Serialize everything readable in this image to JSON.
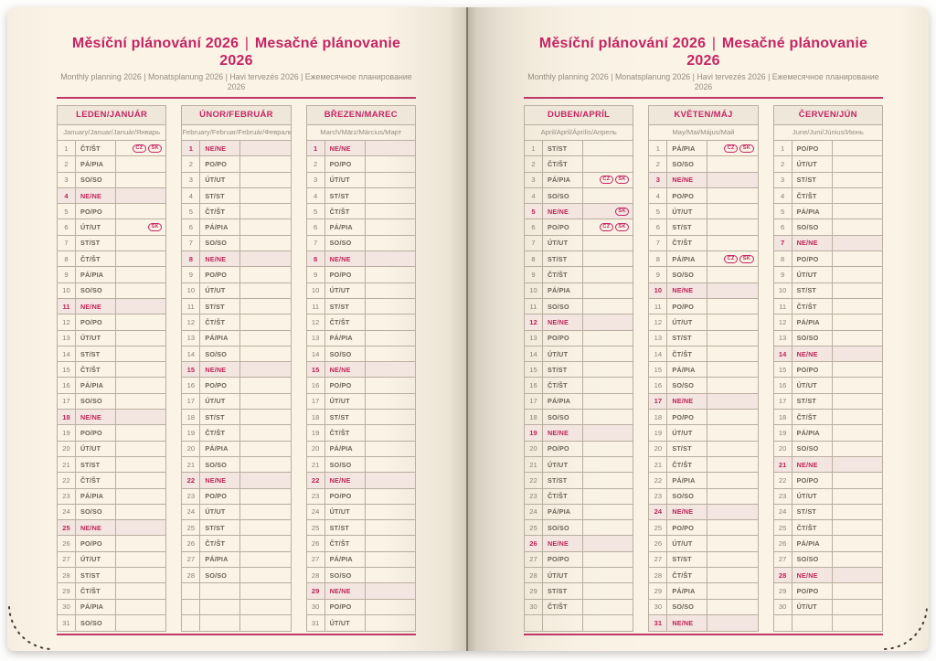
{
  "title": {
    "cs": "Měsíční plánování 2026",
    "sep": "|",
    "sk": "Mesačné plánovanie 2026",
    "subtitle": "Monthly planning 2026 | Monatsplanung 2026 | Havi tervezés 2026 | Ежемесячное планирование 2026"
  },
  "colors": {
    "accent_pink": "#c42563",
    "sunday_text": "#bf2456",
    "sunday_row_bg": "#f3e6e1",
    "table_border": "#b9ae9f",
    "page_paper": "#faf3e6"
  },
  "badge_labels": [
    "CZ",
    "SK"
  ],
  "months": [
    {
      "header": "LEDEN/JANUÁR",
      "subheader": "January/Januar/Január/Январь",
      "days": [
        {
          "n": "1",
          "w": "ČT/ŠT",
          "b": [
            "CZ",
            "SK"
          ]
        },
        {
          "n": "2",
          "w": "PÁ/PIA"
        },
        {
          "n": "3",
          "w": "SO/SO"
        },
        {
          "n": "4",
          "w": "NE/NE",
          "s": true
        },
        {
          "n": "5",
          "w": "PO/PO"
        },
        {
          "n": "6",
          "w": "ÚT/UT",
          "b": [
            "SK"
          ]
        },
        {
          "n": "7",
          "w": "ST/ST"
        },
        {
          "n": "8",
          "w": "ČT/ŠT"
        },
        {
          "n": "9",
          "w": "PÁ/PIA"
        },
        {
          "n": "10",
          "w": "SO/SO"
        },
        {
          "n": "11",
          "w": "NE/NE",
          "s": true
        },
        {
          "n": "12",
          "w": "PO/PO"
        },
        {
          "n": "13",
          "w": "ÚT/UT"
        },
        {
          "n": "14",
          "w": "ST/ST"
        },
        {
          "n": "15",
          "w": "ČT/ŠT"
        },
        {
          "n": "16",
          "w": "PÁ/PIA"
        },
        {
          "n": "17",
          "w": "SO/SO"
        },
        {
          "n": "18",
          "w": "NE/NE",
          "s": true
        },
        {
          "n": "19",
          "w": "PO/PO"
        },
        {
          "n": "20",
          "w": "ÚT/UT"
        },
        {
          "n": "21",
          "w": "ST/ST"
        },
        {
          "n": "22",
          "w": "ČT/ŠT"
        },
        {
          "n": "23",
          "w": "PÁ/PIA"
        },
        {
          "n": "24",
          "w": "SO/SO"
        },
        {
          "n": "25",
          "w": "NE/NE",
          "s": true
        },
        {
          "n": "26",
          "w": "PO/PO"
        },
        {
          "n": "27",
          "w": "ÚT/UT"
        },
        {
          "n": "28",
          "w": "ST/ST"
        },
        {
          "n": "29",
          "w": "ČT/ŠT"
        },
        {
          "n": "30",
          "w": "PÁ/PIA"
        },
        {
          "n": "31",
          "w": "SO/SO"
        }
      ]
    },
    {
      "header": "ÚNOR/FEBRUÁR",
      "subheader": "February/Februar/Február/Февраль",
      "days": [
        {
          "n": "1",
          "w": "NE/NE",
          "s": true
        },
        {
          "n": "2",
          "w": "PO/PO"
        },
        {
          "n": "3",
          "w": "ÚT/UT"
        },
        {
          "n": "4",
          "w": "ST/ST"
        },
        {
          "n": "5",
          "w": "ČT/ŠT"
        },
        {
          "n": "6",
          "w": "PÁ/PIA"
        },
        {
          "n": "7",
          "w": "SO/SO"
        },
        {
          "n": "8",
          "w": "NE/NE",
          "s": true
        },
        {
          "n": "9",
          "w": "PO/PO"
        },
        {
          "n": "10",
          "w": "ÚT/UT"
        },
        {
          "n": "11",
          "w": "ST/ST"
        },
        {
          "n": "12",
          "w": "ČT/ŠT"
        },
        {
          "n": "13",
          "w": "PÁ/PIA"
        },
        {
          "n": "14",
          "w": "SO/SO"
        },
        {
          "n": "15",
          "w": "NE/NE",
          "s": true
        },
        {
          "n": "16",
          "w": "PO/PO"
        },
        {
          "n": "17",
          "w": "ÚT/UT"
        },
        {
          "n": "18",
          "w": "ST/ST"
        },
        {
          "n": "19",
          "w": "ČT/ŠT"
        },
        {
          "n": "20",
          "w": "PÁ/PIA"
        },
        {
          "n": "21",
          "w": "SO/SO"
        },
        {
          "n": "22",
          "w": "NE/NE",
          "s": true
        },
        {
          "n": "23",
          "w": "PO/PO"
        },
        {
          "n": "24",
          "w": "ÚT/UT"
        },
        {
          "n": "25",
          "w": "ST/ST"
        },
        {
          "n": "26",
          "w": "ČT/ŠT"
        },
        {
          "n": "27",
          "w": "PÁ/PIA"
        },
        {
          "n": "28",
          "w": "SO/SO"
        },
        {
          "n": "",
          "w": ""
        },
        {
          "n": "",
          "w": ""
        },
        {
          "n": "",
          "w": ""
        }
      ]
    },
    {
      "header": "BŘEZEN/MAREC",
      "subheader": "March/März/Március/Март",
      "days": [
        {
          "n": "1",
          "w": "NE/NE",
          "s": true
        },
        {
          "n": "2",
          "w": "PO/PO"
        },
        {
          "n": "3",
          "w": "ÚT/UT"
        },
        {
          "n": "4",
          "w": "ST/ST"
        },
        {
          "n": "5",
          "w": "ČT/ŠT"
        },
        {
          "n": "6",
          "w": "PÁ/PIA"
        },
        {
          "n": "7",
          "w": "SO/SO"
        },
        {
          "n": "8",
          "w": "NE/NE",
          "s": true
        },
        {
          "n": "9",
          "w": "PO/PO"
        },
        {
          "n": "10",
          "w": "ÚT/UT"
        },
        {
          "n": "11",
          "w": "ST/ST"
        },
        {
          "n": "12",
          "w": "ČT/ŠT"
        },
        {
          "n": "13",
          "w": "PÁ/PIA"
        },
        {
          "n": "14",
          "w": "SO/SO"
        },
        {
          "n": "15",
          "w": "NE/NE",
          "s": true
        },
        {
          "n": "16",
          "w": "PO/PO"
        },
        {
          "n": "17",
          "w": "ÚT/UT"
        },
        {
          "n": "18",
          "w": "ST/ST"
        },
        {
          "n": "19",
          "w": "ČT/ŠT"
        },
        {
          "n": "20",
          "w": "PÁ/PIA"
        },
        {
          "n": "21",
          "w": "SO/SO"
        },
        {
          "n": "22",
          "w": "NE/NE",
          "s": true
        },
        {
          "n": "23",
          "w": "PO/PO"
        },
        {
          "n": "24",
          "w": "ÚT/UT"
        },
        {
          "n": "25",
          "w": "ST/ST"
        },
        {
          "n": "26",
          "w": "ČT/ŠT"
        },
        {
          "n": "27",
          "w": "PÁ/PIA"
        },
        {
          "n": "28",
          "w": "SO/SO"
        },
        {
          "n": "29",
          "w": "NE/NE",
          "s": true
        },
        {
          "n": "30",
          "w": "PO/PO"
        },
        {
          "n": "31",
          "w": "ÚT/UT"
        }
      ]
    },
    {
      "header": "DUBEN/APRÍL",
      "subheader": "April/April/Április/Апрель",
      "days": [
        {
          "n": "1",
          "w": "ST/ST"
        },
        {
          "n": "2",
          "w": "ČT/ŠT"
        },
        {
          "n": "3",
          "w": "PÁ/PIA",
          "b": [
            "CZ",
            "SK"
          ]
        },
        {
          "n": "4",
          "w": "SO/SO"
        },
        {
          "n": "5",
          "w": "NE/NE",
          "s": true,
          "b": [
            "SK"
          ]
        },
        {
          "n": "6",
          "w": "PO/PO",
          "b": [
            "CZ",
            "SK"
          ]
        },
        {
          "n": "7",
          "w": "ÚT/UT"
        },
        {
          "n": "8",
          "w": "ST/ST"
        },
        {
          "n": "9",
          "w": "ČT/ŠT"
        },
        {
          "n": "10",
          "w": "PÁ/PIA"
        },
        {
          "n": "11",
          "w": "SO/SO"
        },
        {
          "n": "12",
          "w": "NE/NE",
          "s": true
        },
        {
          "n": "13",
          "w": "PO/PO"
        },
        {
          "n": "14",
          "w": "ÚT/UT"
        },
        {
          "n": "15",
          "w": "ST/ST"
        },
        {
          "n": "16",
          "w": "ČT/ŠT"
        },
        {
          "n": "17",
          "w": "PÁ/PIA"
        },
        {
          "n": "18",
          "w": "SO/SO"
        },
        {
          "n": "19",
          "w": "NE/NE",
          "s": true
        },
        {
          "n": "20",
          "w": "PO/PO"
        },
        {
          "n": "21",
          "w": "ÚT/UT"
        },
        {
          "n": "22",
          "w": "ST/ST"
        },
        {
          "n": "23",
          "w": "ČT/ŠT"
        },
        {
          "n": "24",
          "w": "PÁ/PIA"
        },
        {
          "n": "25",
          "w": "SO/SO"
        },
        {
          "n": "26",
          "w": "NE/NE",
          "s": true
        },
        {
          "n": "27",
          "w": "PO/PO"
        },
        {
          "n": "28",
          "w": "ÚT/UT"
        },
        {
          "n": "29",
          "w": "ST/ST"
        },
        {
          "n": "30",
          "w": "ČT/ŠT"
        },
        {
          "n": "",
          "w": ""
        }
      ]
    },
    {
      "header": "KVĚTEN/MÁJ",
      "subheader": "May/Mai/Május/Май",
      "days": [
        {
          "n": "1",
          "w": "PÁ/PIA",
          "b": [
            "CZ",
            "SK"
          ]
        },
        {
          "n": "2",
          "w": "SO/SO"
        },
        {
          "n": "3",
          "w": "NE/NE",
          "s": true
        },
        {
          "n": "4",
          "w": "PO/PO"
        },
        {
          "n": "5",
          "w": "ÚT/UT"
        },
        {
          "n": "6",
          "w": "ST/ST"
        },
        {
          "n": "7",
          "w": "ČT/ŠT"
        },
        {
          "n": "8",
          "w": "PÁ/PIA",
          "b": [
            "CZ",
            "SK"
          ]
        },
        {
          "n": "9",
          "w": "SO/SO"
        },
        {
          "n": "10",
          "w": "NE/NE",
          "s": true
        },
        {
          "n": "11",
          "w": "PO/PO"
        },
        {
          "n": "12",
          "w": "ÚT/UT"
        },
        {
          "n": "13",
          "w": "ST/ST"
        },
        {
          "n": "14",
          "w": "ČT/ŠT"
        },
        {
          "n": "15",
          "w": "PÁ/PIA"
        },
        {
          "n": "16",
          "w": "SO/SO"
        },
        {
          "n": "17",
          "w": "NE/NE",
          "s": true
        },
        {
          "n": "18",
          "w": "PO/PO"
        },
        {
          "n": "19",
          "w": "ÚT/UT"
        },
        {
          "n": "20",
          "w": "ST/ST"
        },
        {
          "n": "21",
          "w": "ČT/ŠT"
        },
        {
          "n": "22",
          "w": "PÁ/PIA"
        },
        {
          "n": "23",
          "w": "SO/SO"
        },
        {
          "n": "24",
          "w": "NE/NE",
          "s": true
        },
        {
          "n": "25",
          "w": "PO/PO"
        },
        {
          "n": "26",
          "w": "ÚT/UT"
        },
        {
          "n": "27",
          "w": "ST/ST"
        },
        {
          "n": "28",
          "w": "ČT/ŠT"
        },
        {
          "n": "29",
          "w": "PÁ/PIA"
        },
        {
          "n": "30",
          "w": "SO/SO"
        },
        {
          "n": "31",
          "w": "NE/NE",
          "s": true
        }
      ]
    },
    {
      "header": "ČERVEN/JÚN",
      "subheader": "June/Juni/Június/Июнь",
      "days": [
        {
          "n": "1",
          "w": "PO/PO"
        },
        {
          "n": "2",
          "w": "ÚT/UT"
        },
        {
          "n": "3",
          "w": "ST/ST"
        },
        {
          "n": "4",
          "w": "ČT/ŠT"
        },
        {
          "n": "5",
          "w": "PÁ/PIA"
        },
        {
          "n": "6",
          "w": "SO/SO"
        },
        {
          "n": "7",
          "w": "NE/NE",
          "s": true
        },
        {
          "n": "8",
          "w": "PO/PO"
        },
        {
          "n": "9",
          "w": "ÚT/UT"
        },
        {
          "n": "10",
          "w": "ST/ST"
        },
        {
          "n": "11",
          "w": "ČT/ŠT"
        },
        {
          "n": "12",
          "w": "PÁ/PIA"
        },
        {
          "n": "13",
          "w": "SO/SO"
        },
        {
          "n": "14",
          "w": "NE/NE",
          "s": true
        },
        {
          "n": "15",
          "w": "PO/PO"
        },
        {
          "n": "16",
          "w": "ÚT/UT"
        },
        {
          "n": "17",
          "w": "ST/ST"
        },
        {
          "n": "18",
          "w": "ČT/ŠT"
        },
        {
          "n": "19",
          "w": "PÁ/PIA"
        },
        {
          "n": "20",
          "w": "SO/SO"
        },
        {
          "n": "21",
          "w": "NE/NE",
          "s": true
        },
        {
          "n": "22",
          "w": "PO/PO"
        },
        {
          "n": "23",
          "w": "ÚT/UT"
        },
        {
          "n": "24",
          "w": "ST/ST"
        },
        {
          "n": "25",
          "w": "ČT/ŠT"
        },
        {
          "n": "26",
          "w": "PÁ/PIA"
        },
        {
          "n": "27",
          "w": "SO/SO"
        },
        {
          "n": "28",
          "w": "NE/NE",
          "s": true
        },
        {
          "n": "29",
          "w": "PO/PO"
        },
        {
          "n": "30",
          "w": "ÚT/UT"
        },
        {
          "n": "",
          "w": ""
        }
      ]
    }
  ]
}
